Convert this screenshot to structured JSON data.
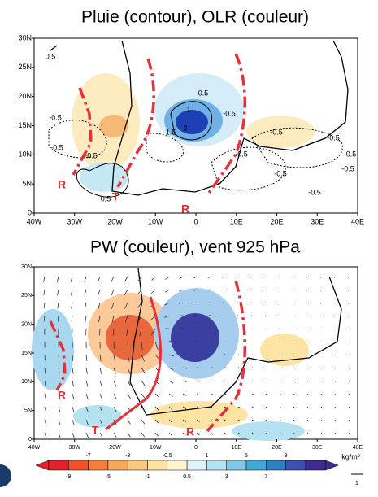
{
  "panels": [
    {
      "title": "Pluie (contour), OLR (couleur)",
      "lat_labels": [
        "0",
        "5N",
        "10N",
        "15N",
        "20N",
        "25N",
        "30N"
      ],
      "lon_labels": [
        "40W",
        "30W",
        "20W",
        "10W",
        "0",
        "10E",
        "20E",
        "30E",
        "40E"
      ],
      "annotations": [
        "R",
        "T",
        "R"
      ],
      "contour_labels": [
        "0.5",
        "0.5",
        "-0.5",
        "1",
        "2",
        "1.5",
        "-0.5",
        "-0.5",
        "-0.5",
        "0.5",
        "-0.5",
        "-0.5",
        "0.5",
        "-0.5",
        "-0.5",
        "-0.5",
        "-0.5"
      ]
    },
    {
      "title": "PW (couleur), vent 925 hPa",
      "lat_labels": [
        "0",
        "5N",
        "10N",
        "15N",
        "20N",
        "25N",
        "30N"
      ],
      "lon_labels": [
        "40W",
        "30W",
        "20W",
        "10W",
        "0",
        "10E",
        "20E",
        "30E",
        "40E"
      ],
      "annotations": [
        "R",
        "T",
        "R"
      ]
    }
  ],
  "colorbar": {
    "upper_labels": [
      "-7",
      "-3",
      "-0.5",
      "1",
      "5",
      "9"
    ],
    "lower_labels": [
      "-9",
      "-5",
      "-1",
      "0.5",
      "3",
      "7"
    ],
    "unit": "kg/m²",
    "vector_scale": "1"
  }
}
